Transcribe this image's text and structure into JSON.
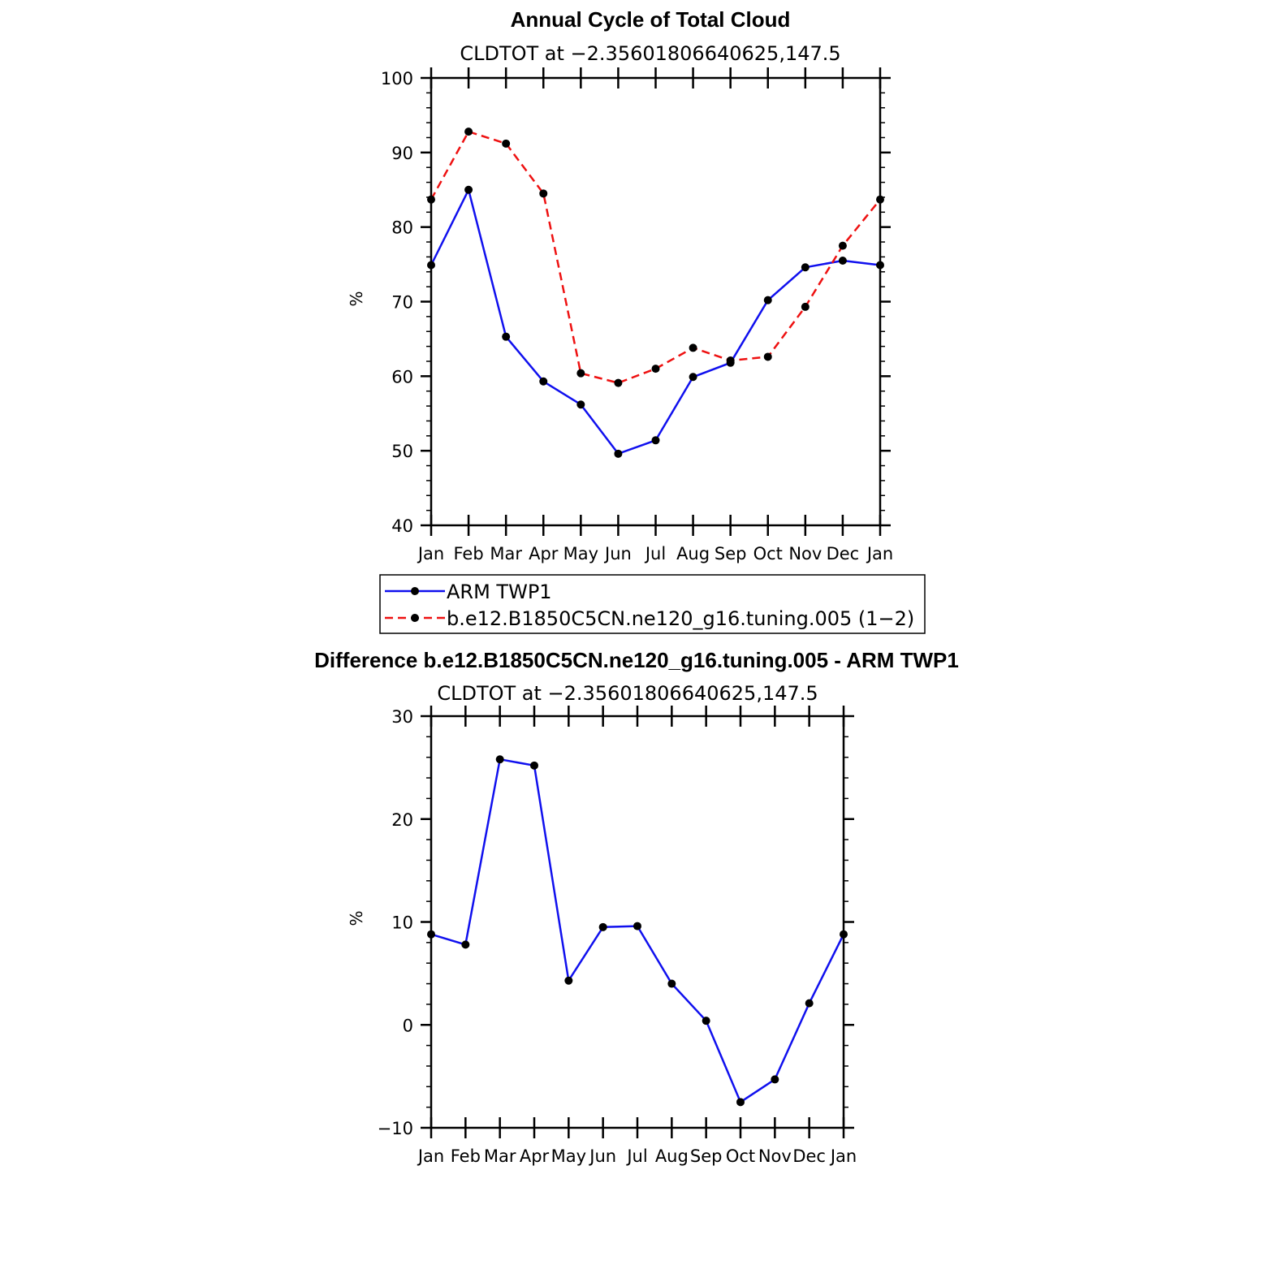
{
  "colors": {
    "obs": "#1010ee",
    "model": "#ee1111",
    "marker": "#000000",
    "axis": "#000000"
  },
  "chart_data": [
    {
      "type": "line",
      "title": "Annual Cycle of Total Cloud",
      "subtitle": "CLDTOT at −2.35601806640625,147.5",
      "xlabel": "",
      "ylabel": "%",
      "categories": [
        "Jan",
        "Feb",
        "Mar",
        "Apr",
        "May",
        "Jun",
        "Jul",
        "Aug",
        "Sep",
        "Oct",
        "Nov",
        "Dec",
        "Jan"
      ],
      "ylim": [
        40,
        100
      ],
      "yticks": [
        40,
        50,
        60,
        70,
        80,
        90,
        100
      ],
      "ytick_labels": [
        "40",
        "50",
        "60",
        "70",
        "80",
        "90",
        "100"
      ],
      "series": [
        {
          "name": "ARM TWP1",
          "style": "solid",
          "color": "#1010ee",
          "values": [
            74.9,
            85.0,
            65.3,
            59.3,
            56.2,
            49.6,
            51.4,
            59.9,
            61.8,
            70.2,
            74.6,
            75.5,
            74.9
          ]
        },
        {
          "name": "b.e12.B1850C5CN.ne120_g16.tuning.005 (1−2)",
          "style": "dashed",
          "color": "#ee1111",
          "values": [
            83.7,
            92.8,
            91.2,
            84.5,
            60.4,
            59.1,
            61.0,
            63.8,
            62.1,
            62.6,
            69.3,
            77.5,
            83.7
          ]
        }
      ],
      "legend": {
        "position": "below",
        "entries": [
          "ARM TWP1",
          "b.e12.B1850C5CN.ne120_g16.tuning.005 (1−2)"
        ]
      }
    },
    {
      "type": "line",
      "title": "Difference b.e12.B1850C5CN.ne120_g16.tuning.005 - ARM TWP1",
      "subtitle": "CLDTOT at −2.35601806640625,147.5",
      "xlabel": "",
      "ylabel": "%",
      "categories": [
        "Jan",
        "Feb",
        "Mar",
        "Apr",
        "May",
        "Jun",
        "Jul",
        "Aug",
        "Sep",
        "Oct",
        "Nov",
        "Dec",
        "Jan"
      ],
      "ylim": [
        -10,
        30
      ],
      "yticks": [
        -10,
        0,
        10,
        20,
        30
      ],
      "ytick_labels": [
        "−10",
        "0",
        "10",
        "20",
        "30"
      ],
      "series": [
        {
          "name": "Difference",
          "style": "solid",
          "color": "#1010ee",
          "values": [
            8.8,
            7.8,
            25.8,
            25.2,
            4.3,
            9.5,
            9.6,
            4.0,
            0.4,
            -7.5,
            -5.3,
            2.1,
            8.8
          ]
        }
      ]
    }
  ]
}
